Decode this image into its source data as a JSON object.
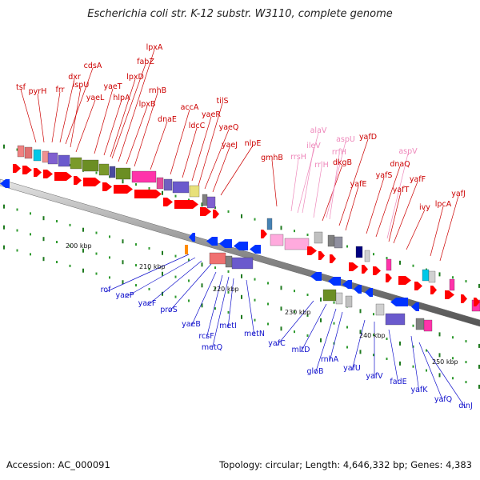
{
  "title": "Escherichia coli str. K-12 substr. W3110, complete genome",
  "footer": {
    "accession": "Accession: AC_000091",
    "summary": "Topology: circular; Length: 4,646,332 bp; Genes: 4,383"
  },
  "colors": {
    "forward_label": "#cc0000",
    "reverse_label": "#1010cc",
    "rna_label": "#ee88bb",
    "forward_arrow": "#ff0000",
    "reverse_arrow": "#0033ff",
    "backbone": "#8a8a8a"
  },
  "ticks": [
    {
      "label": "200 kbp"
    },
    {
      "label": "210 kbp"
    },
    {
      "label": "220 kbp"
    },
    {
      "label": "230 kbp"
    },
    {
      "label": "240 kbp"
    },
    {
      "label": "250 kbp"
    }
  ],
  "forward_genes": [
    "tsf",
    "pyrH",
    "frr",
    "dxr",
    "cdsA",
    "ispU",
    "yaeL",
    "yaeT",
    "hlpA",
    "lpxD",
    "fabZ",
    "lpxA",
    "lpxB",
    "rnhB",
    "dnaE",
    "accA",
    "ldcC",
    "yaeR",
    "tilS",
    "yaeQ",
    "yaeJ",
    "nlpE",
    "gmhB",
    "dkgB",
    "yafD",
    "yafE",
    "yafS",
    "dnaQ",
    "yafT",
    "yafF",
    "ivy",
    "lpcA",
    "yafJ"
  ],
  "rna_genes": [
    "alaV",
    "ileV",
    "rrsH",
    "rrlH",
    "aspU",
    "rrfH",
    "aspV"
  ],
  "reverse_genes": [
    "rof",
    "yaeP",
    "yaeF",
    "proS",
    "yaeB",
    "rcsF",
    "metQ",
    "metI",
    "metN",
    "yafC",
    "mltD",
    "gloB",
    "rnhA",
    "yafU",
    "yafV",
    "fadE",
    "yafK",
    "yafQ",
    "dinJ"
  ]
}
